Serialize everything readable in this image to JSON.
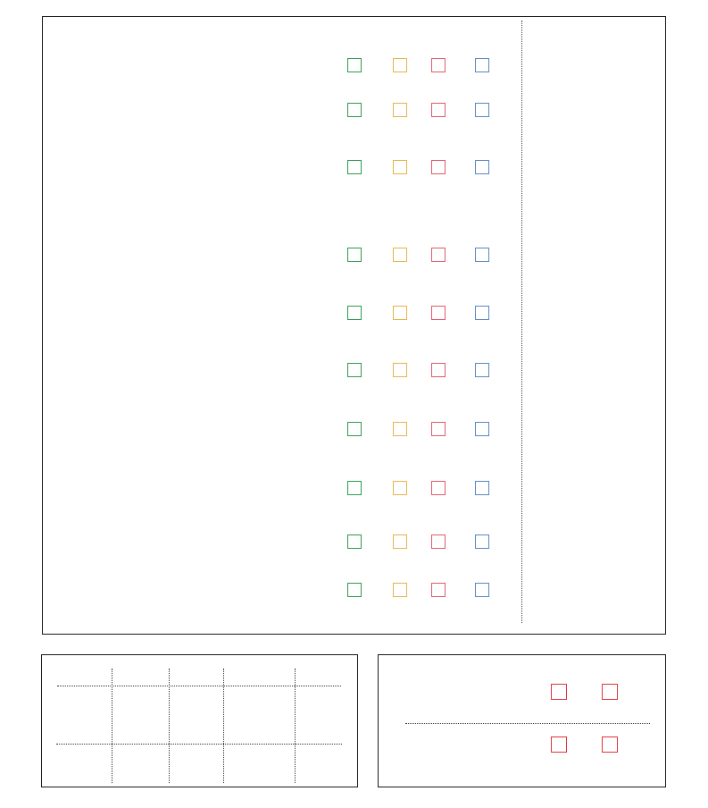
{
  "checkbox_columns": [
    {
      "name": "green",
      "color": "#2e9a4e"
    },
    {
      "name": "orange",
      "color": "#e8b24a"
    },
    {
      "name": "red",
      "color": "#e05a6a"
    },
    {
      "name": "blue",
      "color": "#5a86c4"
    }
  ],
  "checkbox_rows": 10,
  "bottom_right_checkbox_color": "#e0343c",
  "bottom_right_checkbox_count": 4,
  "divider_color": "#444444",
  "border_color": "#1a1a1a"
}
